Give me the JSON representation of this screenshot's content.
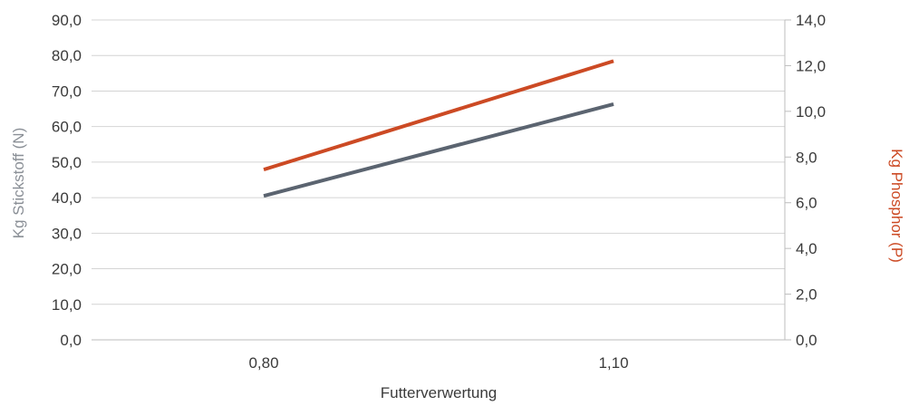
{
  "chart_data": {
    "type": "line",
    "title": "",
    "xlabel": "Futterverwertung",
    "ylabel": "Kg Stickstoff (N)",
    "y2label": "Kg Phosphor (P)",
    "categories": [
      "0,80",
      "1,10"
    ],
    "ylim": [
      0,
      90
    ],
    "y2lim": [
      0,
      14
    ],
    "y_ticks": [
      "0,0",
      "10,0",
      "20,0",
      "30,0",
      "40,0",
      "50,0",
      "60,0",
      "70,0",
      "80,0",
      "90,0"
    ],
    "y2_ticks": [
      "0,0",
      "2,0",
      "4,0",
      "6,0",
      "8,0",
      "10,0",
      "12,0",
      "14,0"
    ],
    "grid": true,
    "series": [
      {
        "axis": "left",
        "color": "#5b6470",
        "values": [
          40.5,
          66.3
        ]
      },
      {
        "axis": "right",
        "color": "#cc4a24",
        "values": [
          7.45,
          12.2
        ]
      }
    ],
    "colors": {
      "left_axis_title": "#8a8f96",
      "right_axis_title": "#cc4a24",
      "gridline": "#d4d4d4",
      "axis_line": "#bdbdbd"
    }
  }
}
